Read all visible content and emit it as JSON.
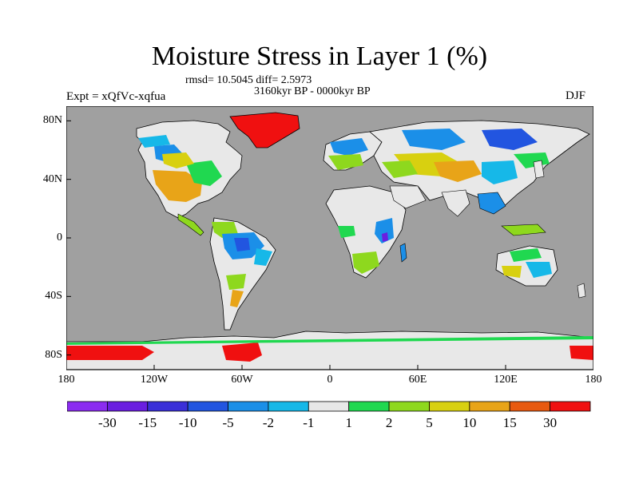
{
  "title": "Moisture Stress in Layer 1 (%)",
  "stats_text": "rmsd= 10.5045 diff= 2.5973",
  "period": "3160kyr BP - 0000kyr BP",
  "experiment": "Expt = xQfVc-xqfua",
  "season": "DJF",
  "map": {
    "projection": "cylindrical equidistant",
    "lon_range": [
      -180,
      180
    ],
    "lat_range": [
      -90,
      90
    ],
    "ocean_color": "#a0a0a0",
    "coastline_color": "#000000",
    "lon_ticks": [
      {
        "value": -180,
        "label": "180"
      },
      {
        "value": -120,
        "label": "120W"
      },
      {
        "value": -60,
        "label": "60W"
      },
      {
        "value": 0,
        "label": "0"
      },
      {
        "value": 60,
        "label": "60E"
      },
      {
        "value": 120,
        "label": "120E"
      },
      {
        "value": 180,
        "label": "180"
      }
    ],
    "lat_ticks": [
      {
        "value": 80,
        "label": "80N"
      },
      {
        "value": 40,
        "label": "40N"
      },
      {
        "value": 0,
        "label": "0"
      },
      {
        "value": -40,
        "label": "40S"
      },
      {
        "value": -80,
        "label": "80S"
      }
    ]
  },
  "colorbar": {
    "colors": [
      "#8b2cf0",
      "#6a1ee0",
      "#3a2fd8",
      "#2255e0",
      "#1b8fe8",
      "#16b8e8",
      "#e8e8e8",
      "#20d850",
      "#8ed81e",
      "#d8d010",
      "#e8a418",
      "#e85a10",
      "#f01010"
    ],
    "labels": [
      "-30",
      "-15",
      "-10",
      "-5",
      "-2",
      "-1",
      "1",
      "2",
      "5",
      "10",
      "15",
      "30"
    ]
  }
}
